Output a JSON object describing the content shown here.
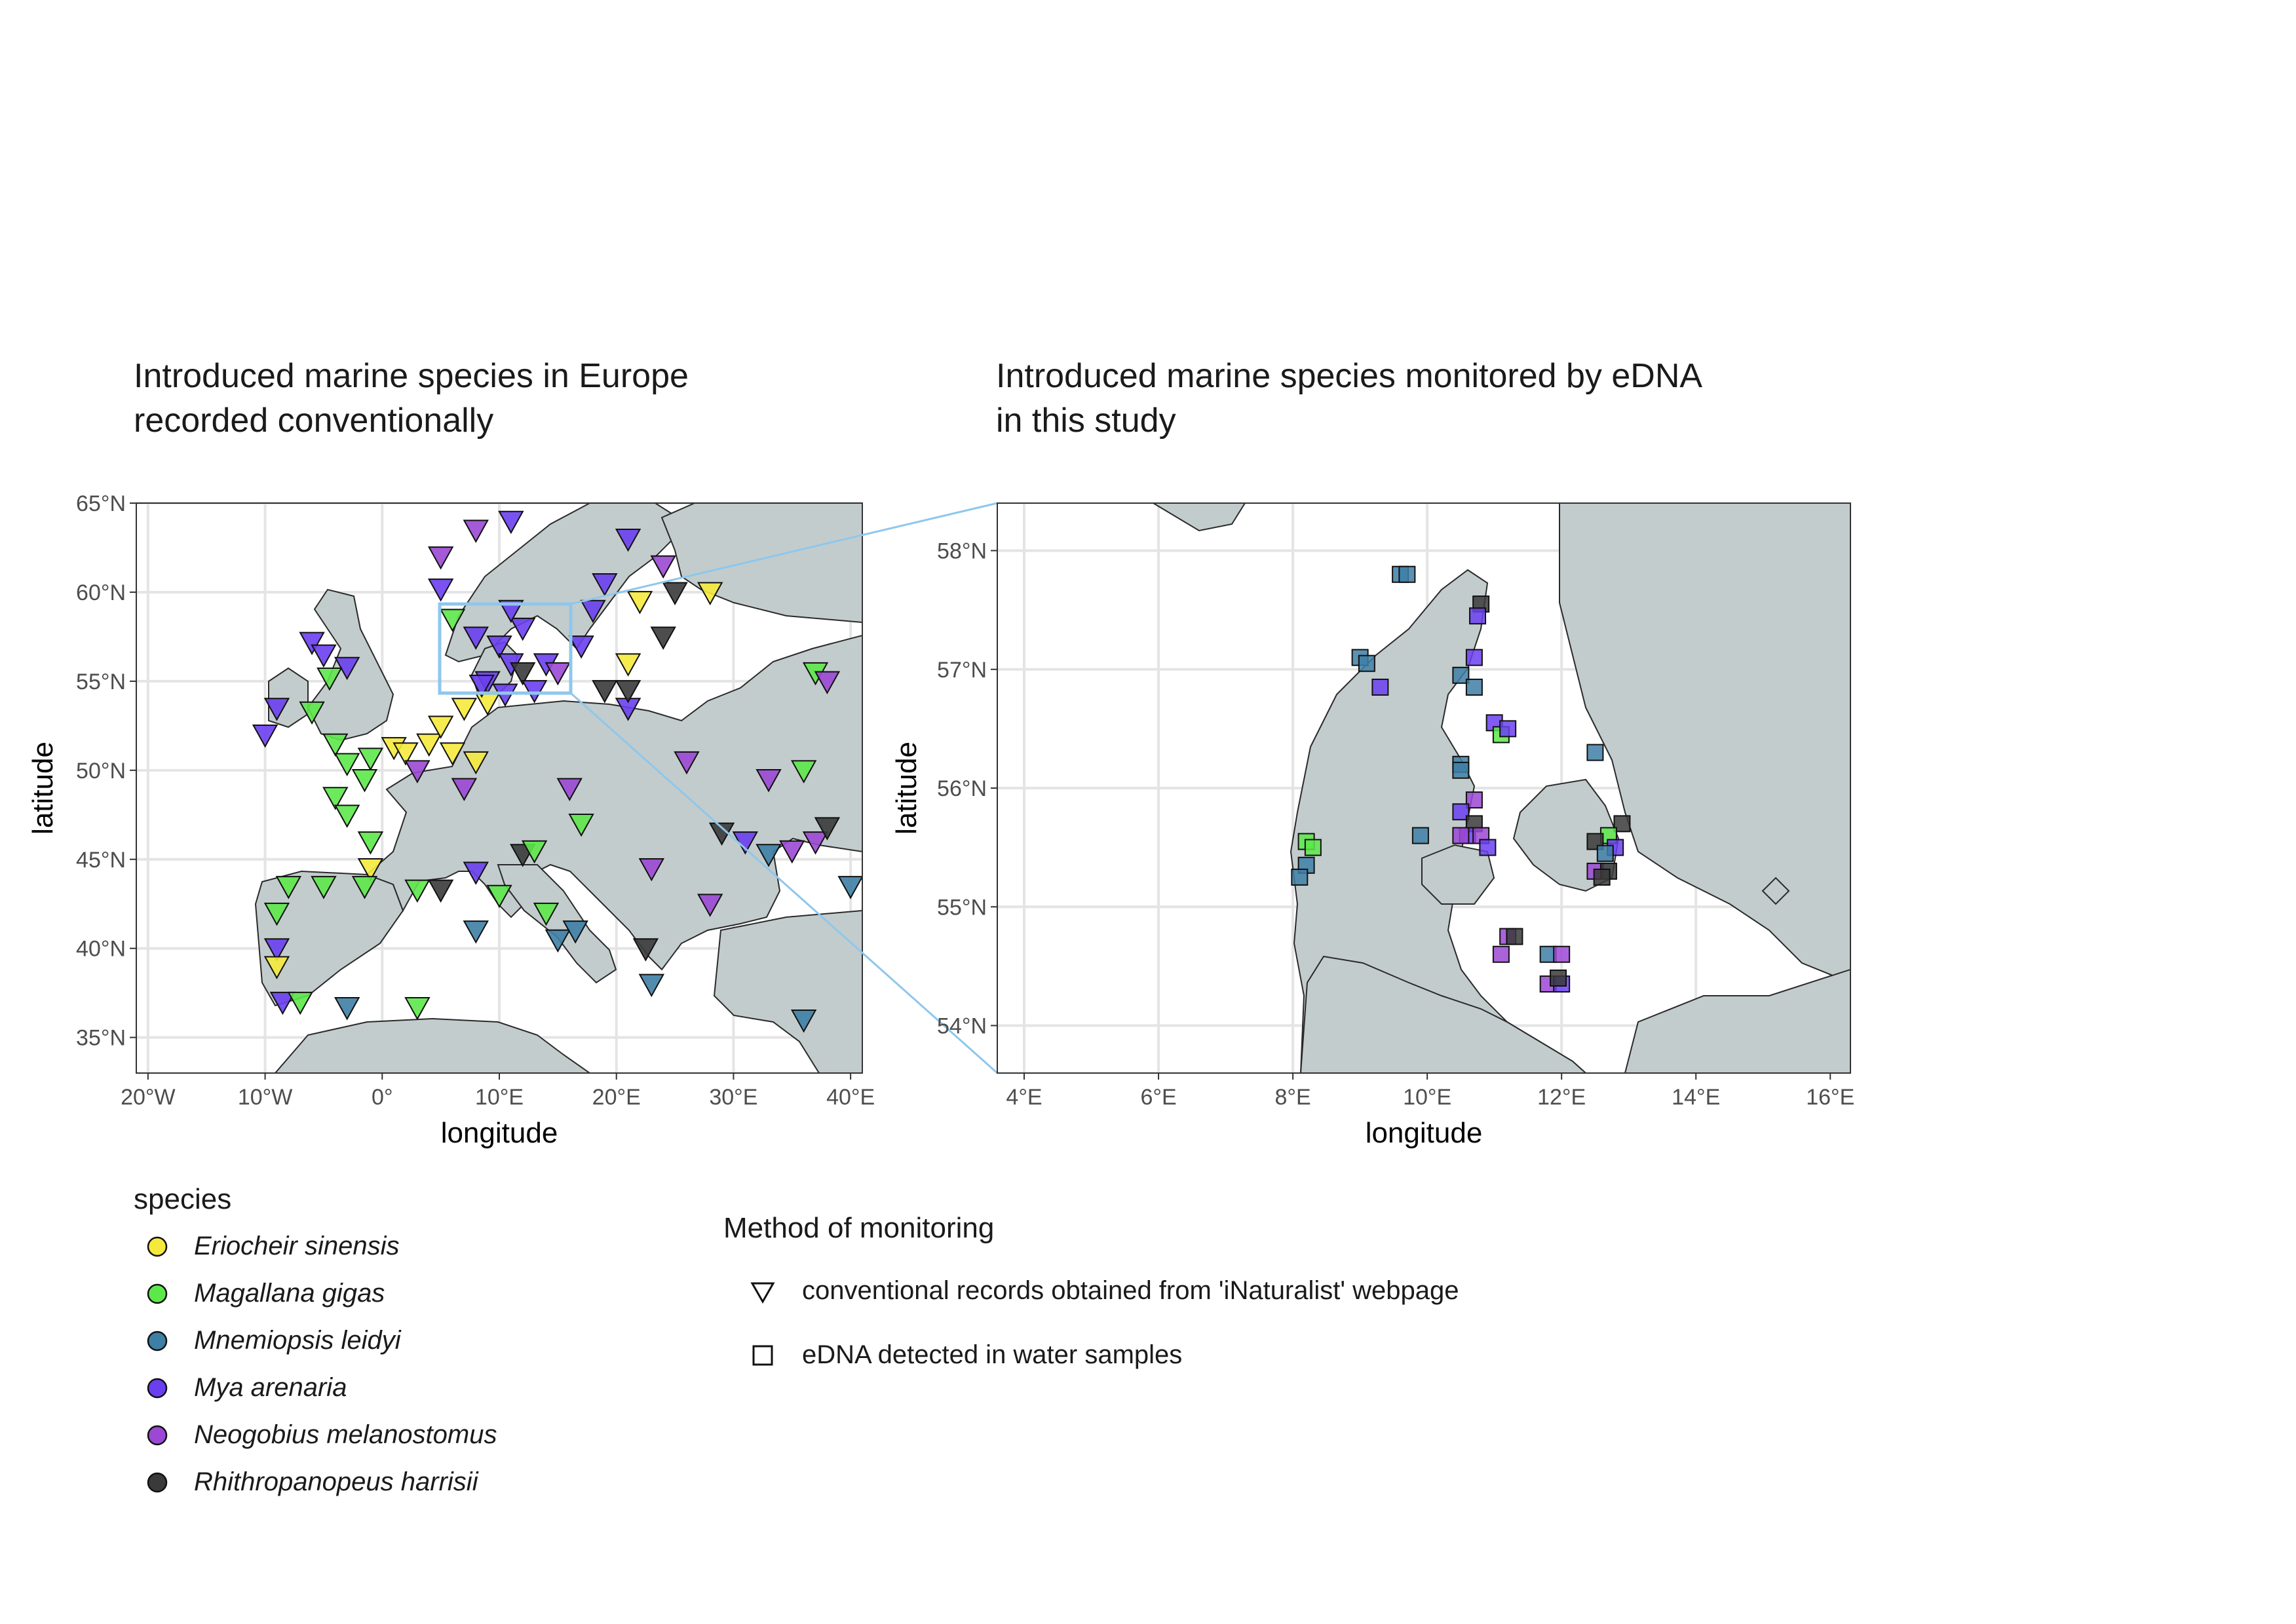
{
  "left_panel": {
    "title": "Introduced marine species in Europe\nrecorded conventionally",
    "xlabel": "longitude",
    "ylabel": "latitude",
    "x_ticks": [
      "20°W",
      "10°W",
      "0°",
      "10°E",
      "20°E",
      "30°E",
      "40°E"
    ],
    "y_ticks": [
      "65°N",
      "60°N",
      "55°N",
      "50°N",
      "45°N",
      "40°N",
      "35°N"
    ]
  },
  "right_panel": {
    "title": "Introduced marine species monitored by eDNA\nin this study",
    "xlabel": "longitude",
    "ylabel": "latitude",
    "x_ticks": [
      "4°E",
      "6°E",
      "8°E",
      "10°E",
      "12°E",
      "14°E",
      "16°E"
    ],
    "y_ticks": [
      "58°N",
      "57°N",
      "56°N",
      "55°N",
      "54°N"
    ]
  },
  "legend_species": {
    "title": "species",
    "items": [
      {
        "label": "Eriocheir sinensis",
        "color": "#f5ea3c"
      },
      {
        "label": "Magallana gigas",
        "color": "#5de84a"
      },
      {
        "label": "Mnemiopsis leidyi",
        "color": "#3e7fa6"
      },
      {
        "label": "Mya arenaria",
        "color": "#6a3ff0"
      },
      {
        "label": "Neogobius melanostomus",
        "color": "#9b48d4"
      },
      {
        "label": "Rhithropanopeus harrisii",
        "color": "#3a3a3a"
      }
    ]
  },
  "legend_method": {
    "title": "Method of monitoring",
    "items": [
      {
        "label": "conventional records obtained from 'iNaturalist' webpage",
        "shape": "triangle"
      },
      {
        "label": "eDNA detected in water samples",
        "shape": "square"
      }
    ]
  },
  "colors": {
    "land": "#c3cccc",
    "sea": "#ffffff",
    "grid": "#e6e6e6",
    "zoom_box": "#8ec7ec"
  },
  "chart_data": {
    "type": "scatter",
    "left_records": [
      {
        "lon": -6,
        "lat": 57.2,
        "sp": 3
      },
      {
        "lon": -5,
        "lat": 56.5,
        "sp": 3
      },
      {
        "lon": -3,
        "lat": 55.8,
        "sp": 3
      },
      {
        "lon": -4.5,
        "lat": 55.2,
        "sp": 1
      },
      {
        "lon": -9,
        "lat": 53.5,
        "sp": 3
      },
      {
        "lon": -10,
        "lat": 52,
        "sp": 3
      },
      {
        "lon": -6,
        "lat": 53.3,
        "sp": 1
      },
      {
        "lon": -4,
        "lat": 51.5,
        "sp": 1
      },
      {
        "lon": -3,
        "lat": 50.4,
        "sp": 1
      },
      {
        "lon": -1,
        "lat": 50.7,
        "sp": 1
      },
      {
        "lon": 1,
        "lat": 51.3,
        "sp": 0
      },
      {
        "lon": 2,
        "lat": 51,
        "sp": 0
      },
      {
        "lon": 4,
        "lat": 51.5,
        "sp": 0
      },
      {
        "lon": 5,
        "lat": 52.5,
        "sp": 0
      },
      {
        "lon": 7,
        "lat": 53.5,
        "sp": 0
      },
      {
        "lon": 9,
        "lat": 53.8,
        "sp": 0
      },
      {
        "lon": 6,
        "lat": 51,
        "sp": 0
      },
      {
        "lon": 8,
        "lat": 50.5,
        "sp": 0
      },
      {
        "lon": 3,
        "lat": 50,
        "sp": 4
      },
      {
        "lon": 7,
        "lat": 49,
        "sp": 4
      },
      {
        "lon": -1.5,
        "lat": 49.5,
        "sp": 1
      },
      {
        "lon": -4,
        "lat": 48.5,
        "sp": 1
      },
      {
        "lon": -3,
        "lat": 47.5,
        "sp": 1
      },
      {
        "lon": -1,
        "lat": 46,
        "sp": 1
      },
      {
        "lon": -1,
        "lat": 44.5,
        "sp": 0
      },
      {
        "lon": -1.5,
        "lat": 43.5,
        "sp": 1
      },
      {
        "lon": -5,
        "lat": 43.5,
        "sp": 1
      },
      {
        "lon": -8,
        "lat": 43.5,
        "sp": 1
      },
      {
        "lon": -9,
        "lat": 42,
        "sp": 1
      },
      {
        "lon": -9,
        "lat": 40,
        "sp": 3
      },
      {
        "lon": -9,
        "lat": 39,
        "sp": 0
      },
      {
        "lon": -8.5,
        "lat": 37,
        "sp": 3
      },
      {
        "lon": -7,
        "lat": 37,
        "sp": 1
      },
      {
        "lon": -3,
        "lat": 36.7,
        "sp": 2
      },
      {
        "lon": 3,
        "lat": 43.3,
        "sp": 1
      },
      {
        "lon": 5,
        "lat": 43.3,
        "sp": 5
      },
      {
        "lon": 3,
        "lat": 36.7,
        "sp": 1
      },
      {
        "lon": 8,
        "lat": 44.3,
        "sp": 3
      },
      {
        "lon": 8,
        "lat": 41,
        "sp": 2
      },
      {
        "lon": 10,
        "lat": 43,
        "sp": 1
      },
      {
        "lon": 12,
        "lat": 45.3,
        "sp": 5
      },
      {
        "lon": 13,
        "lat": 45.5,
        "sp": 1
      },
      {
        "lon": 14,
        "lat": 42,
        "sp": 1
      },
      {
        "lon": 15,
        "lat": 40.5,
        "sp": 2
      },
      {
        "lon": 16.5,
        "lat": 41,
        "sp": 2
      },
      {
        "lon": 22.5,
        "lat": 40,
        "sp": 5
      },
      {
        "lon": 23,
        "lat": 38,
        "sp": 2
      },
      {
        "lon": 23,
        "lat": 44.5,
        "sp": 4
      },
      {
        "lon": 28,
        "lat": 42.5,
        "sp": 4
      },
      {
        "lon": 29,
        "lat": 46.5,
        "sp": 5
      },
      {
        "lon": 31,
        "lat": 46,
        "sp": 3
      },
      {
        "lon": 33,
        "lat": 45.3,
        "sp": 2
      },
      {
        "lon": 35,
        "lat": 45.5,
        "sp": 4
      },
      {
        "lon": 37,
        "lat": 46,
        "sp": 4
      },
      {
        "lon": 38,
        "lat": 46.8,
        "sp": 5
      },
      {
        "lon": 40,
        "lat": 43.5,
        "sp": 2
      },
      {
        "lon": 36,
        "lat": 36,
        "sp": 2
      },
      {
        "lon": 37,
        "lat": 55.5,
        "sp": 1
      },
      {
        "lon": 38,
        "lat": 55,
        "sp": 4
      },
      {
        "lon": 36,
        "lat": 50,
        "sp": 1
      },
      {
        "lon": 33,
        "lat": 49.5,
        "sp": 4
      },
      {
        "lon": 26,
        "lat": 50.5,
        "sp": 4
      },
      {
        "lon": 16,
        "lat": 49,
        "sp": 4
      },
      {
        "lon": 17,
        "lat": 47,
        "sp": 1
      },
      {
        "lon": 21,
        "lat": 53.5,
        "sp": 3
      },
      {
        "lon": 19,
        "lat": 54.5,
        "sp": 5
      },
      {
        "lon": 21,
        "lat": 54.5,
        "sp": 5
      },
      {
        "lon": 21,
        "lat": 56,
        "sp": 0
      },
      {
        "lon": 24,
        "lat": 57.5,
        "sp": 5
      },
      {
        "lon": 22,
        "lat": 59.5,
        "sp": 0
      },
      {
        "lon": 25,
        "lat": 60,
        "sp": 5
      },
      {
        "lon": 28,
        "lat": 60,
        "sp": 0
      },
      {
        "lon": 24,
        "lat": 61.5,
        "sp": 4
      },
      {
        "lon": 21,
        "lat": 63,
        "sp": 3
      },
      {
        "lon": 18,
        "lat": 59,
        "sp": 3
      },
      {
        "lon": 19,
        "lat": 60.5,
        "sp": 3
      },
      {
        "lon": 17,
        "lat": 57,
        "sp": 3
      },
      {
        "lon": 11,
        "lat": 64,
        "sp": 3
      },
      {
        "lon": 8,
        "lat": 63.5,
        "sp": 4
      },
      {
        "lon": 5,
        "lat": 62,
        "sp": 4
      },
      {
        "lon": 5,
        "lat": 60.2,
        "sp": 3
      },
      {
        "lon": 6,
        "lat": 58.5,
        "sp": 1
      },
      {
        "lon": 8,
        "lat": 57.5,
        "sp": 3
      },
      {
        "lon": 10,
        "lat": 57,
        "sp": 3
      },
      {
        "lon": 11,
        "lat": 56,
        "sp": 3
      },
      {
        "lon": 12,
        "lat": 55.5,
        "sp": 5
      },
      {
        "lon": 9,
        "lat": 55,
        "sp": 3
      },
      {
        "lon": 13,
        "lat": 54.5,
        "sp": 3
      },
      {
        "lon": 10.5,
        "lat": 54.3,
        "sp": 3
      },
      {
        "lon": 8.5,
        "lat": 54.8,
        "sp": 3
      },
      {
        "lon": 14,
        "lat": 56,
        "sp": 3
      },
      {
        "lon": 12,
        "lat": 58,
        "sp": 3
      },
      {
        "lon": 11,
        "lat": 59,
        "sp": 3
      },
      {
        "lon": 15,
        "lat": 55.5,
        "sp": 4
      }
    ],
    "right_detections": [
      {
        "lon": 9.6,
        "lat": 57.8,
        "sp": 2
      },
      {
        "lon": 9.7,
        "lat": 57.8,
        "sp": 2
      },
      {
        "lon": 10.8,
        "lat": 57.55,
        "sp": 5
      },
      {
        "lon": 10.75,
        "lat": 57.45,
        "sp": 3
      },
      {
        "lon": 9.0,
        "lat": 57.1,
        "sp": 2
      },
      {
        "lon": 9.1,
        "lat": 57.05,
        "sp": 2
      },
      {
        "lon": 9.3,
        "lat": 56.85,
        "sp": 3
      },
      {
        "lon": 10.7,
        "lat": 57.1,
        "sp": 3
      },
      {
        "lon": 10.5,
        "lat": 56.95,
        "sp": 2
      },
      {
        "lon": 10.7,
        "lat": 56.85,
        "sp": 2
      },
      {
        "lon": 11.0,
        "lat": 56.55,
        "sp": 3
      },
      {
        "lon": 11.1,
        "lat": 56.45,
        "sp": 1
      },
      {
        "lon": 11.2,
        "lat": 56.5,
        "sp": 3
      },
      {
        "lon": 10.5,
        "lat": 56.2,
        "sp": 2
      },
      {
        "lon": 10.5,
        "lat": 56.15,
        "sp": 2
      },
      {
        "lon": 12.5,
        "lat": 56.3,
        "sp": 2
      },
      {
        "lon": 10.7,
        "lat": 55.9,
        "sp": 4
      },
      {
        "lon": 10.5,
        "lat": 55.8,
        "sp": 3
      },
      {
        "lon": 10.7,
        "lat": 55.7,
        "sp": 5
      },
      {
        "lon": 10.6,
        "lat": 55.6,
        "sp": 3
      },
      {
        "lon": 10.8,
        "lat": 55.6,
        "sp": 4
      },
      {
        "lon": 10.9,
        "lat": 55.5,
        "sp": 3
      },
      {
        "lon": 10.5,
        "lat": 55.6,
        "sp": 4
      },
      {
        "lon": 9.9,
        "lat": 55.6,
        "sp": 2
      },
      {
        "lon": 8.2,
        "lat": 55.55,
        "sp": 1
      },
      {
        "lon": 8.3,
        "lat": 55.5,
        "sp": 1
      },
      {
        "lon": 8.2,
        "lat": 55.35,
        "sp": 2
      },
      {
        "lon": 8.1,
        "lat": 55.25,
        "sp": 2
      },
      {
        "lon": 12.9,
        "lat": 55.7,
        "sp": 5
      },
      {
        "lon": 12.7,
        "lat": 55.6,
        "sp": 1
      },
      {
        "lon": 12.5,
        "lat": 55.55,
        "sp": 5
      },
      {
        "lon": 12.8,
        "lat": 55.5,
        "sp": 3
      },
      {
        "lon": 12.65,
        "lat": 55.45,
        "sp": 2
      },
      {
        "lon": 12.5,
        "lat": 55.3,
        "sp": 4
      },
      {
        "lon": 12.7,
        "lat": 55.3,
        "sp": 5
      },
      {
        "lon": 12.6,
        "lat": 55.25,
        "sp": 5
      },
      {
        "lon": 11.2,
        "lat": 54.75,
        "sp": 4
      },
      {
        "lon": 11.3,
        "lat": 54.75,
        "sp": 5
      },
      {
        "lon": 11.1,
        "lat": 54.6,
        "sp": 4
      },
      {
        "lon": 11.8,
        "lat": 54.6,
        "sp": 2
      },
      {
        "lon": 12.0,
        "lat": 54.6,
        "sp": 4
      },
      {
        "lon": 11.8,
        "lat": 54.35,
        "sp": 4
      },
      {
        "lon": 12.0,
        "lat": 54.35,
        "sp": 3
      },
      {
        "lon": 11.95,
        "lat": 54.4,
        "sp": 5
      }
    ]
  }
}
